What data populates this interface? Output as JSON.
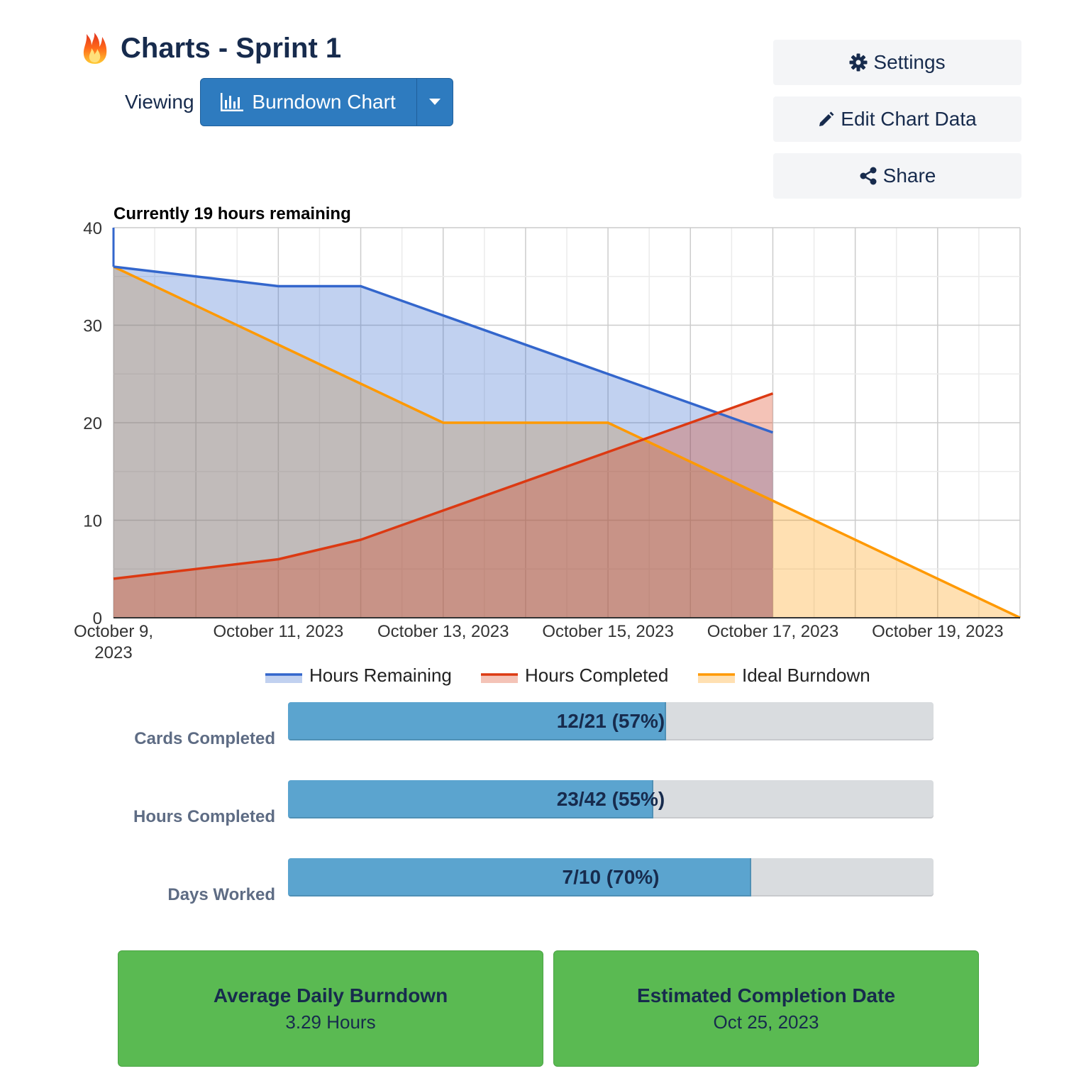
{
  "header": {
    "title": "Charts - Sprint 1",
    "viewing_label": "Viewing",
    "chart_selector_label": "Burndown Chart"
  },
  "actions": {
    "settings_label": "Settings",
    "edit_label": "Edit Chart Data",
    "share_label": "Share"
  },
  "colors": {
    "primary": "#2e7bbf",
    "remaining": "#3366cc",
    "completed": "#dc3912",
    "ideal": "#ff9900",
    "progress": "#5ba4cf",
    "stat": "#5aba52"
  },
  "chart_data": {
    "type": "area",
    "title": "Currently 19 hours remaining",
    "x_tick_labels": [
      "October 9, 2023",
      "October 11, 2023",
      "October 13, 2023",
      "October 15, 2023",
      "October 17, 2023",
      "October 19, 2023"
    ],
    "x_tick_days": [
      0,
      2,
      4,
      6,
      8,
      10
    ],
    "y_ticks": [
      0,
      10,
      20,
      30,
      40
    ],
    "ylim": [
      0,
      40
    ],
    "xlim_days": [
      0,
      11
    ],
    "grid": true,
    "legend_position": "bottom",
    "series": [
      {
        "name": "Hours Remaining",
        "color": "#3366cc",
        "x": [
          0,
          2,
          3,
          4,
          6,
          8
        ],
        "values": [
          36,
          34,
          34,
          31,
          25,
          19
        ]
      },
      {
        "name": "Hours Completed",
        "color": "#dc3912",
        "x": [
          0,
          2,
          3,
          4,
          6,
          8
        ],
        "values": [
          4,
          6,
          8,
          11,
          17,
          23
        ]
      },
      {
        "name": "Ideal Burndown",
        "color": "#ff9900",
        "x": [
          0,
          2,
          3,
          4,
          6,
          8,
          11
        ],
        "values": [
          36,
          28,
          24,
          20,
          20,
          12,
          0
        ]
      }
    ]
  },
  "progress": [
    {
      "label": "Cards Completed",
      "text": "12/21 (57%)",
      "fraction": 0.586
    },
    {
      "label": "Hours Completed",
      "text": "23/42 (55%)",
      "fraction": 0.566
    },
    {
      "label": "Days Worked",
      "text": "7/10 (70%)",
      "fraction": 0.718
    }
  ],
  "stats": [
    {
      "title": "Average Daily Burndown",
      "value": "3.29 Hours"
    },
    {
      "title": "Estimated Completion Date",
      "value": "Oct 25, 2023"
    }
  ]
}
